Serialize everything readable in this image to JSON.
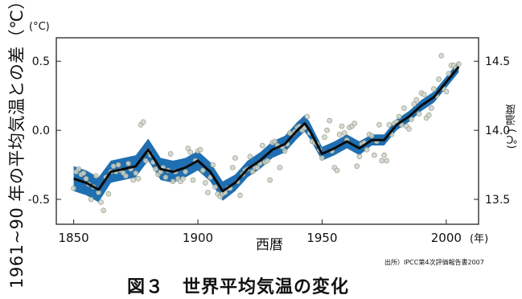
{
  "chart_data": {
    "type": "line",
    "title": "",
    "left_axis_label": "1961~90 年の平均気温との差（℃）",
    "left_unit": "(°C)",
    "right_axis_label": "気温(°C)",
    "right_axis_label_display": "(℃) 温度",
    "xlabel": "西暦",
    "x_unit_tick": "(年)",
    "xlim": [
      1843,
      2013
    ],
    "ylim": [
      -0.68,
      0.67
    ],
    "x_ticks": [
      1850,
      1900,
      1950,
      2000
    ],
    "left_ticks": [
      -0.5,
      0.0,
      0.5
    ],
    "left_tick_labels": [
      "-0.5",
      "0.0",
      "0.5"
    ],
    "right_ticks": [
      13.5,
      14.0,
      14.5
    ],
    "right_tick_labels": [
      "13.5",
      "14.0",
      "14.5"
    ],
    "right_offset": 14.0,
    "grid": false,
    "band_color": "#1f6fb2",
    "line_color": "#0a0a0a",
    "dot_color": "#cfd6c8",
    "series": [
      {
        "name": "",
        "x": [
          1850,
          1855,
          1860,
          1865,
          1870,
          1875,
          1880,
          1885,
          1890,
          1895,
          1900,
          1905,
          1910,
          1915,
          1920,
          1925,
          1930,
          1935,
          1940,
          1943,
          1945,
          1950,
          1955,
          1960,
          1965,
          1970,
          1975,
          1980,
          1985,
          1990,
          1995,
          2000,
          2005
        ],
        "y": [
          -0.35,
          -0.38,
          -0.43,
          -0.3,
          -0.28,
          -0.26,
          -0.14,
          -0.28,
          -0.3,
          -0.27,
          -0.22,
          -0.3,
          -0.44,
          -0.38,
          -0.28,
          -0.22,
          -0.14,
          -0.1,
          0.0,
          0.05,
          0.0,
          -0.17,
          -0.13,
          -0.08,
          -0.13,
          -0.07,
          -0.07,
          0.04,
          0.1,
          0.18,
          0.24,
          0.35,
          0.46
        ],
        "band_halfwidth": [
          0.09,
          0.09,
          0.09,
          0.08,
          0.08,
          0.08,
          0.08,
          0.08,
          0.08,
          0.07,
          0.07,
          0.07,
          0.07,
          0.06,
          0.06,
          0.06,
          0.06,
          0.06,
          0.06,
          0.06,
          0.06,
          0.05,
          0.05,
          0.05,
          0.05,
          0.04,
          0.04,
          0.04,
          0.04,
          0.04,
          0.04,
          0.04,
          0.04
        ]
      }
    ],
    "points": {
      "x": [
        1850,
        1851,
        1852,
        1853,
        1854,
        1855,
        1856,
        1857,
        1858,
        1859,
        1860,
        1861,
        1862,
        1863,
        1864,
        1865,
        1866,
        1867,
        1868,
        1869,
        1870,
        1871,
        1872,
        1873,
        1874,
        1875,
        1876,
        1877,
        1878,
        1879,
        1880,
        1881,
        1882,
        1883,
        1884,
        1885,
        1886,
        1887,
        1888,
        1889,
        1890,
        1891,
        1892,
        1893,
        1894,
        1895,
        1896,
        1897,
        1898,
        1899,
        1900,
        1901,
        1902,
        1903,
        1904,
        1905,
        1906,
        1907,
        1908,
        1909,
        1910,
        1911,
        1912,
        1913,
        1914,
        1915,
        1916,
        1917,
        1918,
        1919,
        1920,
        1921,
        1922,
        1923,
        1924,
        1925,
        1926,
        1927,
        1928,
        1929,
        1930,
        1931,
        1932,
        1933,
        1934,
        1935,
        1936,
        1937,
        1938,
        1939,
        1940,
        1941,
        1942,
        1943,
        1944,
        1945,
        1946,
        1947,
        1948,
        1949,
        1950,
        1951,
        1952,
        1953,
        1954,
        1955,
        1956,
        1957,
        1958,
        1959,
        1960,
        1961,
        1962,
        1963,
        1964,
        1965,
        1966,
        1967,
        1968,
        1969,
        1970,
        1971,
        1972,
        1973,
        1974,
        1975,
        1976,
        1977,
        1978,
        1979,
        1980,
        1981,
        1982,
        1983,
        1984,
        1985,
        1986,
        1987,
        1988,
        1989,
        1990,
        1991,
        1992,
        1993,
        1994,
        1995,
        1996,
        1997,
        1998,
        1999,
        2000,
        2001,
        2002,
        2003,
        2004,
        2005
      ],
      "y": [
        -0.42,
        -0.3,
        -0.28,
        -0.32,
        -0.31,
        -0.35,
        -0.39,
        -0.5,
        -0.41,
        -0.33,
        -0.45,
        -0.52,
        -0.58,
        -0.34,
        -0.46,
        -0.3,
        -0.26,
        -0.3,
        -0.25,
        -0.29,
        -0.31,
        -0.33,
        -0.24,
        -0.28,
        -0.36,
        -0.31,
        -0.35,
        0.04,
        0.06,
        -0.22,
        -0.15,
        -0.18,
        -0.23,
        -0.28,
        -0.32,
        -0.3,
        -0.27,
        -0.34,
        -0.29,
        -0.17,
        -0.37,
        -0.3,
        -0.35,
        -0.37,
        -0.35,
        -0.3,
        -0.13,
        -0.16,
        -0.36,
        -0.22,
        -0.15,
        -0.14,
        -0.29,
        -0.38,
        -0.45,
        -0.34,
        -0.25,
        -0.41,
        -0.46,
        -0.48,
        -0.46,
        -0.45,
        -0.42,
        -0.42,
        -0.27,
        -0.2,
        -0.37,
        -0.47,
        -0.32,
        -0.29,
        -0.28,
        -0.19,
        -0.3,
        -0.27,
        -0.27,
        -0.24,
        -0.11,
        -0.23,
        -0.22,
        -0.36,
        -0.09,
        -0.08,
        -0.11,
        -0.27,
        -0.12,
        -0.15,
        -0.1,
        -0.02,
        -0.03,
        -0.01,
        0.02,
        0.03,
        0.0,
        0.02,
        0.1,
        -0.02,
        -0.08,
        -0.09,
        -0.1,
        -0.14,
        -0.2,
        -0.05,
        0.0,
        0.07,
        -0.15,
        -0.27,
        -0.29,
        -0.03,
        0.03,
        -0.02,
        -0.07,
        0.02,
        0.03,
        0.05,
        -0.26,
        -0.19,
        -0.1,
        -0.09,
        -0.14,
        -0.03,
        -0.04,
        -0.18,
        -0.08,
        0.04,
        -0.22,
        -0.18,
        -0.22,
        0.04,
        -0.03,
        0.05,
        0.06,
        0.1,
        0.04,
        0.16,
        0.03,
        0.01,
        0.08,
        0.19,
        0.22,
        0.12,
        0.27,
        0.26,
        0.09,
        0.11,
        0.16,
        0.3,
        0.25,
        0.37,
        0.54,
        0.3,
        0.28,
        0.41,
        0.47,
        0.47,
        0.45,
        0.48
      ]
    }
  },
  "left_ticks_text": [
    "0.5",
    "0.0",
    "-0.5"
  ],
  "right_ticks_text": [
    "14.5",
    "14.0",
    "13.5"
  ],
  "x_ticks_text": [
    "1850",
    "1900",
    "1950",
    "2000"
  ],
  "source": "出所）IPCC第4次評価報告書2007",
  "caption": "図３　世界平均気温の変化"
}
